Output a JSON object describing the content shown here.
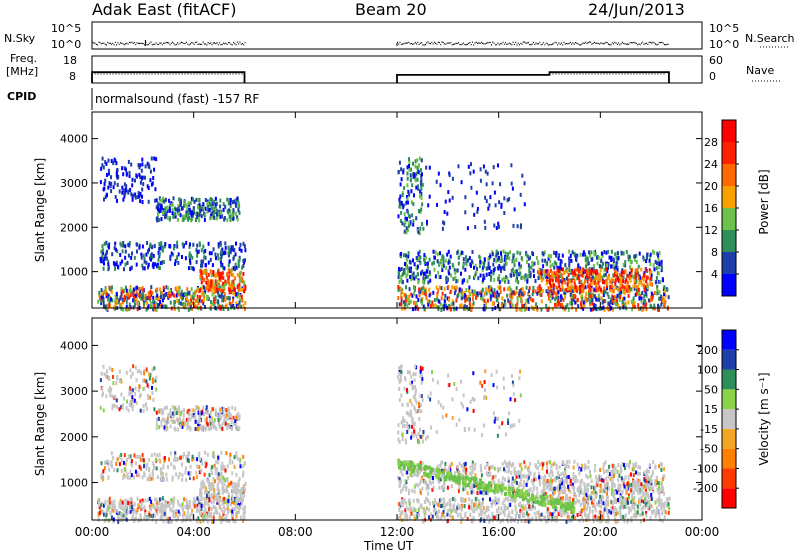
{
  "header": {
    "radar": "Adak East (fitACF)",
    "beam": "Beam 20",
    "date": "24/Jun/2013"
  },
  "panels": {
    "nsky_label": "N.Sky",
    "nsearch_label": "N.Search",
    "nsky_ticks": [
      "10^5",
      "10^0"
    ],
    "freq_label_line1": "Freq.",
    "freq_label_line2": "[MHz]",
    "freq_ticks": [
      "18",
      "8"
    ],
    "nave_label": "Nave",
    "nave_ticks": [
      "60",
      "0"
    ],
    "cpid_label": "CPID",
    "cpid_text": "normalsound (fast) -157 RF"
  },
  "colors": {
    "power": [
      "#0000ff",
      "#1e3fa8",
      "#2f8f5a",
      "#6cc24a",
      "#f7a200",
      "#ff6a00",
      "#ff2000",
      "#ff0000"
    ],
    "velocity_neg": [
      "#c6c6c6",
      "#f5a623",
      "#ff7f00",
      "#ff3b00",
      "#ff0000"
    ],
    "velocity_pos": [
      "#c6c6c6",
      "#8ad24a",
      "#2f8f5a",
      "#1e3fa8",
      "#0000ff"
    ]
  },
  "chart_data": [
    {
      "type": "heatmap",
      "title": "",
      "xlabel": "Time UT",
      "ylabel": "Slant Range [km]",
      "xlim": [
        "00:00",
        "24:00"
      ],
      "ylim": [
        180,
        4600
      ],
      "x_ticks": [
        "00:00",
        "04:00",
        "08:00",
        "12:00",
        "16:00",
        "20:00",
        "00:00"
      ],
      "y_ticks": [
        1000,
        2000,
        3000,
        4000
      ],
      "colorbar_label": "Power [dB]",
      "colorbar_ticks": [
        4,
        8,
        12,
        16,
        20,
        24,
        28
      ],
      "data_intervals_hours": [
        [
          0.0,
          6.0
        ],
        [
          12.0,
          22.7
        ]
      ]
    },
    {
      "type": "heatmap",
      "title": "",
      "xlabel": "Time UT",
      "ylabel": "Slant Range [km]",
      "xlim": [
        "00:00",
        "24:00"
      ],
      "ylim": [
        180,
        4600
      ],
      "x_ticks": [
        "00:00",
        "04:00",
        "08:00",
        "12:00",
        "16:00",
        "20:00",
        "00:00"
      ],
      "y_ticks": [
        1000,
        2000,
        3000,
        4000
      ],
      "colorbar_label": "Velocity [m s⁻¹]",
      "colorbar_ticks": [
        200,
        100,
        50,
        15,
        -15,
        -50,
        -100,
        -200
      ],
      "data_intervals_hours": [
        [
          0.0,
          6.0
        ],
        [
          12.0,
          22.7
        ]
      ]
    }
  ]
}
